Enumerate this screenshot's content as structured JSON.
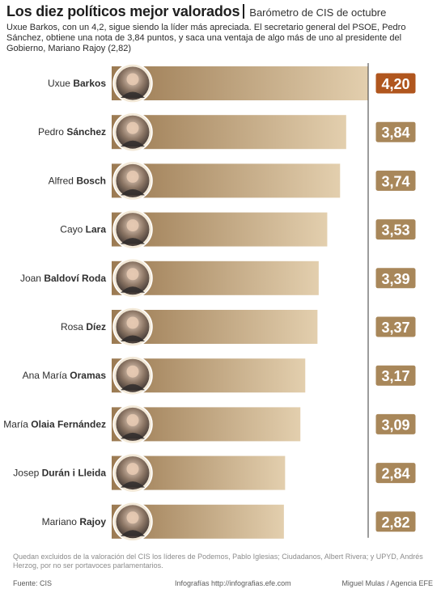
{
  "header": {
    "title": "Los diez políticos mejor valorados",
    "subtitle": "Barómetro de CIS de octubre"
  },
  "intro": "Uxue Barkos, con un 4,2, sigue siendo la líder más apreciada. El secretario general del PSOE, Pedro Sánchez, obtiene una nota de 3,84 puntos, y saca una ventaja de algo más de uno al presidente del Gobierno, Mariano Rajoy (2,82)",
  "chart_data": {
    "type": "bar",
    "orientation": "horizontal",
    "categories": [
      "Uxue Barkos",
      "Pedro Sánchez",
      "Alfred Bosch",
      "Cayo Lara",
      "Joan Baldoví Roda",
      "Rosa Díez",
      "Ana María Oramas",
      "María Olaia Fernández",
      "Josep Durán i Lleida",
      "Mariano Rajoy"
    ],
    "label_parts": [
      {
        "first": "Uxue ",
        "last": "Barkos"
      },
      {
        "first": "Pedro ",
        "last": "Sánchez"
      },
      {
        "first": "Alfred ",
        "last": "Bosch"
      },
      {
        "first": "Cayo ",
        "last": "Lara"
      },
      {
        "first": "Joan ",
        "last": "Baldoví Roda"
      },
      {
        "first": "Rosa ",
        "last": "Díez"
      },
      {
        "first": "Ana María ",
        "last": "Oramas"
      },
      {
        "first": "María ",
        "last": "Olaia Fernández"
      },
      {
        "first": "Josep ",
        "last": "Durán i Lleida"
      },
      {
        "first": "Mariano ",
        "last": "Rajoy"
      }
    ],
    "values": [
      4.2,
      3.84,
      3.74,
      3.53,
      3.39,
      3.37,
      3.17,
      3.09,
      2.84,
      2.82
    ],
    "value_labels": [
      "4,20",
      "3,84",
      "3,74",
      "3,53",
      "3,39",
      "3,37",
      "3,17",
      "3,09",
      "2,84",
      "2,82"
    ],
    "highlight_index": 0,
    "xlim": [
      0,
      4.2
    ],
    "grid": false,
    "legend": "none"
  },
  "colors": {
    "bar_light": "#e3cfae",
    "bar_dark": "#9b7a52",
    "badge": "#a8875a",
    "badge_highlight": "#b0561e",
    "photo_ring": "#f3e9d8",
    "axis_line": "#3a3a3a"
  },
  "icons": {
    "photo": "portrait-icon"
  },
  "footnote": "Quedan excluidos de la valoración del CIS los líderes de Podemos, Pablo Iglesias; Ciudadanos, Albert Rivera; y UPYD, Andrés Herzog, por no ser portavoces parlamentarios.",
  "footer": {
    "source": "Fuente: CIS",
    "web": "Infografías http://infografias.efe.com",
    "credit": "Miguel Mulas / Agencia EFE"
  }
}
